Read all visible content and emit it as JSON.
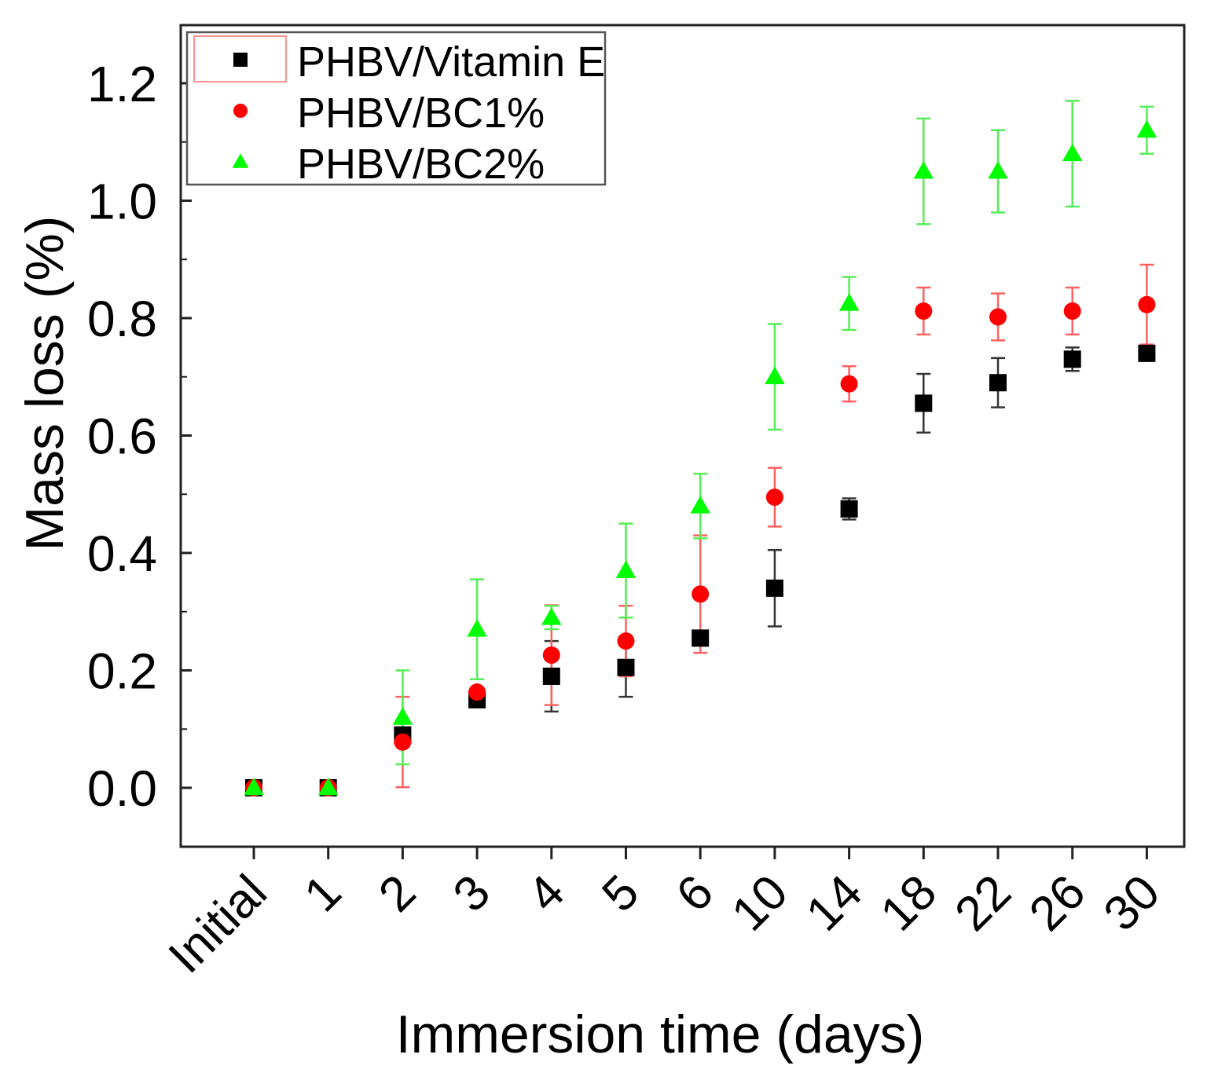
{
  "chart_data": {
    "type": "scatter",
    "title": "",
    "xlabel": "Immersion time (days)",
    "ylabel": "Mass loss (%)",
    "categories": [
      "Initial",
      "1",
      "2",
      "3",
      "4",
      "5",
      "6",
      "10",
      "14",
      "18",
      "22",
      "26",
      "30"
    ],
    "ylim": [
      -0.1,
      1.3
    ],
    "yticks": [
      "0.0",
      "0.2",
      "0.4",
      "0.6",
      "0.8",
      "1.0",
      "1.2"
    ],
    "ytick_values": [
      0.0,
      0.2,
      0.4,
      0.6,
      0.8,
      1.0,
      1.2
    ],
    "grid": false,
    "legend_position": "top-left",
    "series": [
      {
        "name": "PHBV/Vitamin E",
        "marker": "square",
        "color": "#000000",
        "values": [
          0.0,
          0.0,
          0.09,
          0.15,
          0.19,
          0.205,
          0.255,
          0.34,
          0.475,
          0.655,
          0.69,
          0.73,
          0.74
        ],
        "errors": [
          0.0,
          0.0,
          0.0,
          0.0,
          0.06,
          0.05,
          0.0,
          0.065,
          0.018,
          0.05,
          0.042,
          0.02,
          0.008
        ]
      },
      {
        "name": "PHBV/BC1%",
        "marker": "circle",
        "color": "#ff0000",
        "values": [
          0.0,
          0.0,
          0.078,
          0.163,
          0.226,
          0.25,
          0.33,
          0.495,
          0.688,
          0.812,
          0.802,
          0.812,
          0.823
        ],
        "errors": [
          0.0,
          0.0,
          0.077,
          0.0,
          0.085,
          0.06,
          0.1,
          0.05,
          0.03,
          0.04,
          0.04,
          0.04,
          0.068
        ]
      },
      {
        "name": "PHBV/BC2%",
        "marker": "triangle",
        "color": "#00ff00",
        "values": [
          0.0,
          0.0,
          0.12,
          0.27,
          0.29,
          0.37,
          0.48,
          0.7,
          0.825,
          1.05,
          1.05,
          1.08,
          1.12
        ],
        "errors": [
          0.0,
          0.0,
          0.08,
          0.085,
          0.02,
          0.08,
          0.055,
          0.09,
          0.045,
          0.09,
          0.07,
          0.09,
          0.04
        ]
      }
    ]
  }
}
